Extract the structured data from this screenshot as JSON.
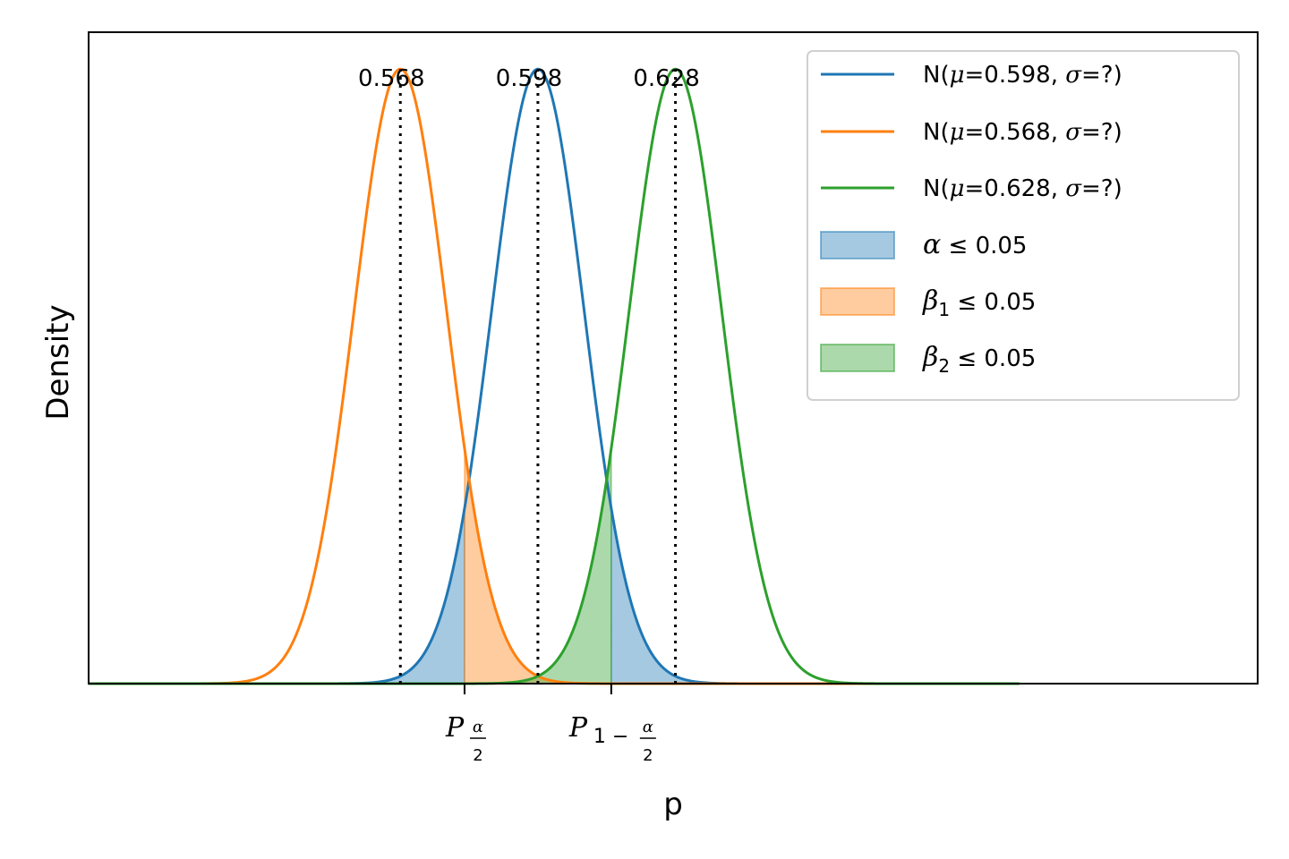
{
  "chart_data": {
    "type": "line",
    "xlabel": "p",
    "ylabel": "Density",
    "xlim": [
      0.5,
      0.755
    ],
    "ylim": [
      0,
      1.06
    ],
    "grid": false,
    "legend_placement": "upper-right",
    "sigma": 0.0101,
    "series": [
      {
        "name": "N(μ=0.598, σ=?)",
        "mu": 0.598,
        "color": "#1f77b4",
        "fill_color": "#1f77b4",
        "fill_label": "α ≤ 0.05"
      },
      {
        "name": "N(μ=0.568, σ=?)",
        "mu": 0.568,
        "color": "#ff7f0e",
        "fill_color": "#ff7f0e",
        "fill_label": "β₁ ≤ 0.05"
      },
      {
        "name": "N(μ=0.628, σ=?)",
        "mu": 0.628,
        "color": "#2ca02c",
        "fill_color": "#2ca02c",
        "fill_label": "β₂ ≤ 0.05"
      }
    ],
    "x_range_plotted": [
      0.5,
      0.703
    ],
    "critical_values": {
      "lower": 0.582,
      "upper": 0.614
    },
    "peak_annotations": [
      "0.568",
      "0.598",
      "0.628"
    ],
    "legend": {
      "lines": [
        {
          "prefix": "N(",
          "mu_sym": "μ",
          "mid": "=0.598, ",
          "sig_sym": "σ",
          "suffix": "=?)"
        },
        {
          "prefix": "N(",
          "mu_sym": "μ",
          "mid": "=0.568, ",
          "sig_sym": "σ",
          "suffix": "=?)"
        },
        {
          "prefix": "N(",
          "mu_sym": "μ",
          "mid": "=0.628, ",
          "sig_sym": "σ",
          "suffix": "=?)"
        }
      ],
      "patches": [
        {
          "sym": "α",
          "sub": "",
          "rest": " ≤ 0.05"
        },
        {
          "sym": "β",
          "sub": "1",
          "rest": " ≤ 0.05"
        },
        {
          "sym": "β",
          "sub": "2",
          "rest": " ≤ 0.05"
        }
      ]
    },
    "xticks": [
      {
        "base": "P",
        "sub_num": "α",
        "sub_den": "2",
        "sub_prefix": ""
      },
      {
        "base": "P",
        "sub_num": "α",
        "sub_den": "2",
        "sub_prefix": "1 −"
      }
    ]
  }
}
